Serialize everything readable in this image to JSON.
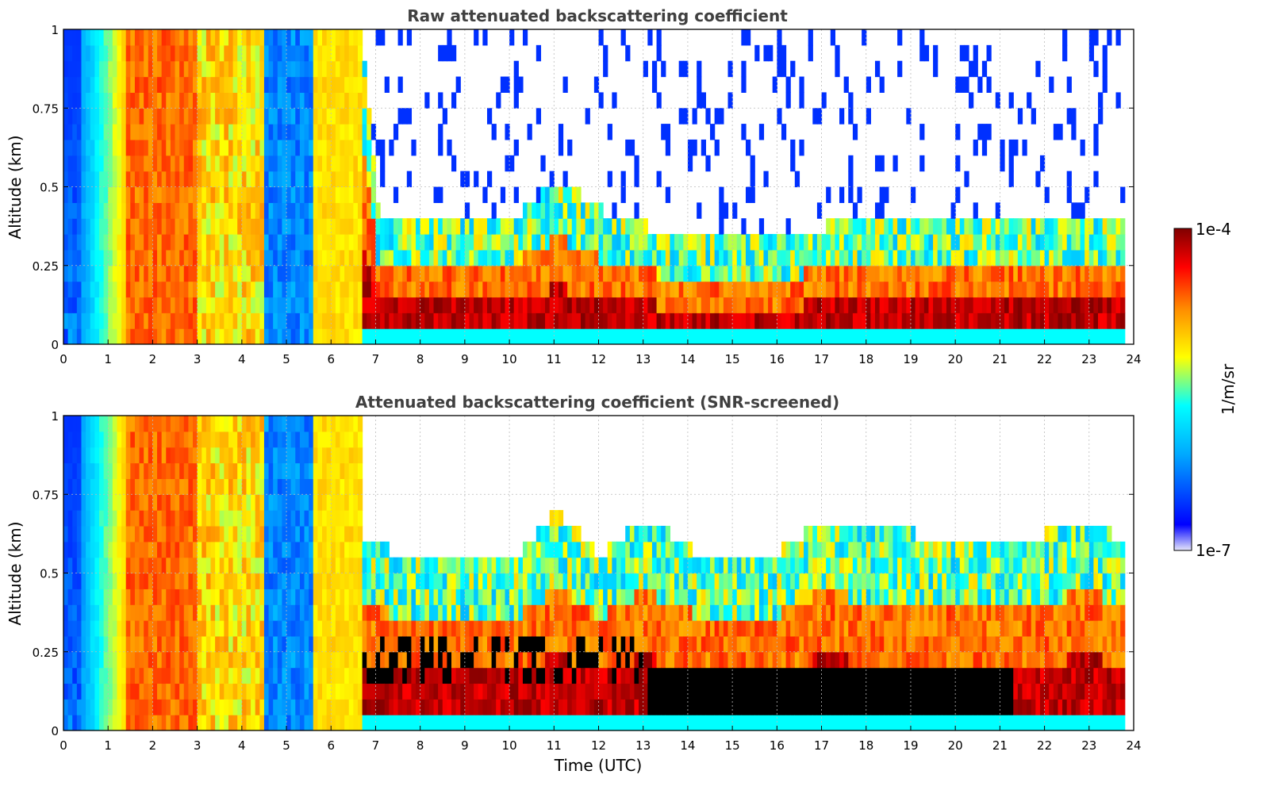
{
  "chart_data": [
    {
      "type": "heatmap",
      "title": "Raw attenuated backscattering coefficient",
      "xlabel": "",
      "ylabel": "Altitude (km)",
      "xlim": [
        0,
        24
      ],
      "ylim": [
        0,
        1
      ],
      "x_ticks": [
        "0",
        "1",
        "2",
        "3",
        "4",
        "5",
        "6",
        "7",
        "8",
        "9",
        "10",
        "11",
        "12",
        "13",
        "14",
        "15",
        "16",
        "17",
        "18",
        "19",
        "20",
        "21",
        "22",
        "23",
        "24"
      ],
      "y_ticks": [
        "0",
        "0.25",
        "0.5",
        "0.75",
        "1"
      ],
      "grid": true,
      "data_end_hour": 23.8,
      "layer_top_km": [
        [
          0,
          1.0
        ],
        [
          2.3,
          1.0
        ],
        [
          6.6,
          1.0
        ],
        [
          7,
          0.35
        ],
        [
          8,
          0.3
        ],
        [
          9,
          0.3
        ],
        [
          10,
          0.32
        ],
        [
          11,
          0.45
        ],
        [
          12,
          0.35
        ],
        [
          13,
          0.3
        ],
        [
          14,
          0.25
        ],
        [
          15,
          0.25
        ],
        [
          16,
          0.27
        ],
        [
          17,
          0.3
        ],
        [
          18,
          0.3
        ],
        [
          19,
          0.3
        ],
        [
          20,
          0.3
        ],
        [
          21,
          0.3
        ],
        [
          22,
          0.35
        ],
        [
          23,
          0.35
        ],
        [
          23.8,
          0.35
        ]
      ]
    },
    {
      "type": "heatmap",
      "title": "Attenuated backscattering coefficient (SNR-screened)",
      "xlabel": "Time (UTC)",
      "ylabel": "Altitude (km)",
      "xlim": [
        0,
        24
      ],
      "ylim": [
        0,
        1
      ],
      "x_ticks": [
        "0",
        "1",
        "2",
        "3",
        "4",
        "5",
        "6",
        "7",
        "8",
        "9",
        "10",
        "11",
        "12",
        "13",
        "14",
        "15",
        "16",
        "17",
        "18",
        "19",
        "20",
        "21",
        "22",
        "23",
        "24"
      ],
      "y_ticks": [
        "0",
        "0.25",
        "0.5",
        "0.75",
        "1"
      ],
      "grid": true,
      "data_end_hour": 23.8,
      "signal_top_km": [
        [
          6.6,
          0.55
        ],
        [
          7,
          0.52
        ],
        [
          8,
          0.45
        ],
        [
          9,
          0.5
        ],
        [
          10,
          0.45
        ],
        [
          11,
          0.62
        ],
        [
          12,
          0.48
        ],
        [
          13,
          0.6
        ],
        [
          14,
          0.5
        ],
        [
          15,
          0.48
        ],
        [
          16,
          0.5
        ],
        [
          17,
          0.6
        ],
        [
          18,
          0.55
        ],
        [
          19,
          0.55
        ],
        [
          20,
          0.5
        ],
        [
          21,
          0.5
        ],
        [
          22,
          0.55
        ],
        [
          23,
          0.6
        ],
        [
          23.8,
          0.52
        ]
      ]
    }
  ],
  "colorbar": {
    "label": "1/m/sr",
    "max_label": "1e-4",
    "min_label": "1e-7",
    "scale": "log",
    "colormap": "jet",
    "colors": [
      "#e6e6fa",
      "#0000ff",
      "#00ffff",
      "#ffff00",
      "#ff8c00",
      "#ff0000",
      "#800000"
    ]
  }
}
